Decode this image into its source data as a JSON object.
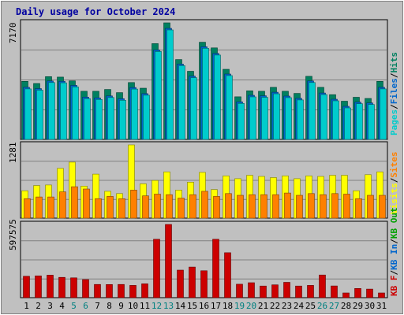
{
  "title": "Daily usage for October 2024",
  "colors": {
    "background": "#c0c0c0",
    "panel": "#c0c0c0",
    "grid": "#808080",
    "title": "#0000a0",
    "pages": "#00cccc",
    "files": "#0066cc",
    "hits": "#008060",
    "visits": "#ffff00",
    "sites": "#ff8000",
    "kb_f": "#cc0000",
    "kb_in": "#0066cc",
    "kb_out": "#00a000",
    "weekday_label": "#000000",
    "weekend_label": "#008080"
  },
  "chart_data": [
    {
      "type": "bar",
      "panel": "top",
      "ymax_label": "7170",
      "ylim": [
        0,
        7170
      ],
      "grid": true,
      "legend": [
        "Pages",
        "/",
        "Files",
        "/",
        "Hits"
      ],
      "x": [
        1,
        2,
        3,
        4,
        5,
        6,
        7,
        8,
        9,
        10,
        11,
        12,
        13,
        14,
        15,
        16,
        17,
        18,
        19,
        20,
        21,
        22,
        23,
        24,
        25,
        26,
        27,
        28,
        29,
        30,
        31
      ],
      "series": [
        {
          "name": "Hits",
          "values": [
            3570,
            3440,
            3860,
            3830,
            3600,
            2960,
            2960,
            3070,
            2880,
            3500,
            3150,
            5890,
            7170,
            4910,
            4190,
            5980,
            5630,
            4310,
            2620,
            2990,
            2960,
            3200,
            2960,
            2830,
            3880,
            3200,
            2750,
            2350,
            2590,
            2520,
            3570
          ]
        },
        {
          "name": "Files",
          "values": [
            3300,
            3220,
            3690,
            3670,
            3420,
            2700,
            2650,
            2770,
            2600,
            3290,
            2910,
            5600,
            6930,
            4730,
            3990,
            5800,
            5380,
            4120,
            2410,
            2810,
            2780,
            3000,
            2760,
            2620,
            3690,
            2950,
            2570,
            2130,
            2390,
            2340,
            3300
          ]
        },
        {
          "name": "Pages",
          "values": [
            3300,
            3220,
            3690,
            3670,
            3420,
            2700,
            2650,
            2770,
            2600,
            3290,
            2910,
            5600,
            6930,
            4730,
            3990,
            5800,
            5380,
            4120,
            2410,
            2810,
            2780,
            3000,
            2760,
            2620,
            3690,
            2950,
            2570,
            2130,
            2390,
            2340,
            3300
          ]
        }
      ]
    },
    {
      "type": "bar",
      "panel": "middle",
      "ymax_label": "1281",
      "ylim": [
        0,
        1281
      ],
      "grid": true,
      "legend": [
        "Visits",
        "/",
        "Sites"
      ],
      "x": [
        1,
        2,
        3,
        4,
        5,
        6,
        7,
        8,
        9,
        10,
        11,
        12,
        13,
        14,
        15,
        16,
        17,
        18,
        19,
        20,
        21,
        22,
        23,
        24,
        25,
        26,
        27,
        28,
        29,
        30,
        31
      ],
      "series": [
        {
          "name": "Visits",
          "values": [
            480,
            570,
            580,
            870,
            980,
            560,
            770,
            470,
            430,
            1281,
            600,
            660,
            810,
            490,
            630,
            800,
            500,
            740,
            690,
            750,
            730,
            710,
            740,
            690,
            740,
            730,
            750,
            750,
            480,
            760,
            810
          ]
        },
        {
          "name": "Sites",
          "values": [
            340,
            370,
            370,
            460,
            550,
            510,
            340,
            380,
            340,
            490,
            390,
            420,
            410,
            350,
            410,
            470,
            380,
            430,
            400,
            410,
            410,
            410,
            440,
            400,
            430,
            410,
            430,
            420,
            340,
            400,
            400
          ]
        }
      ]
    },
    {
      "type": "bar",
      "panel": "bottom",
      "ymax_label": "597575",
      "ylim": [
        0,
        597575
      ],
      "grid": true,
      "legend": [
        "KB F",
        "/",
        "KB In",
        "/",
        "KB Out"
      ],
      "x": [
        1,
        2,
        3,
        4,
        5,
        6,
        7,
        8,
        9,
        10,
        11,
        12,
        13,
        14,
        15,
        16,
        17,
        18,
        19,
        20,
        21,
        22,
        23,
        24,
        25,
        26,
        27,
        28,
        29,
        30,
        31
      ],
      "series": [
        {
          "name": "KB F",
          "values": [
            175000,
            178000,
            184000,
            166000,
            162000,
            148000,
            108000,
            107000,
            108000,
            100000,
            113000,
            477000,
            597575,
            225000,
            250000,
            220000,
            477000,
            367000,
            110000,
            122000,
            95000,
            105000,
            125000,
            95000,
            100000,
            185000,
            96000,
            30000,
            75000,
            70000,
            0
          ]
        }
      ]
    }
  ],
  "day_labels": [
    {
      "text": "1",
      "weekend": false
    },
    {
      "text": "2",
      "weekend": false
    },
    {
      "text": "3",
      "weekend": false
    },
    {
      "text": "4",
      "weekend": false
    },
    {
      "text": "5",
      "weekend": true
    },
    {
      "text": "6",
      "weekend": true
    },
    {
      "text": "7",
      "weekend": false
    },
    {
      "text": "8",
      "weekend": false
    },
    {
      "text": "9",
      "weekend": false
    },
    {
      "text": "10",
      "weekend": false
    },
    {
      "text": "11",
      "weekend": false
    },
    {
      "text": "12",
      "weekend": true
    },
    {
      "text": "13",
      "weekend": true
    },
    {
      "text": "14",
      "weekend": false
    },
    {
      "text": "15",
      "weekend": false
    },
    {
      "text": "16",
      "weekend": false
    },
    {
      "text": "17",
      "weekend": false
    },
    {
      "text": "18",
      "weekend": false
    },
    {
      "text": "19",
      "weekend": true
    },
    {
      "text": "20",
      "weekend": true
    },
    {
      "text": "21",
      "weekend": false
    },
    {
      "text": "22",
      "weekend": false
    },
    {
      "text": "23",
      "weekend": false
    },
    {
      "text": "24",
      "weekend": false
    },
    {
      "text": "25",
      "weekend": false
    },
    {
      "text": "26",
      "weekend": true
    },
    {
      "text": "27",
      "weekend": true
    },
    {
      "text": "28",
      "weekend": false
    },
    {
      "text": "29",
      "weekend": false
    },
    {
      "text": "30",
      "weekend": false
    },
    {
      "text": "31",
      "weekend": false
    }
  ]
}
